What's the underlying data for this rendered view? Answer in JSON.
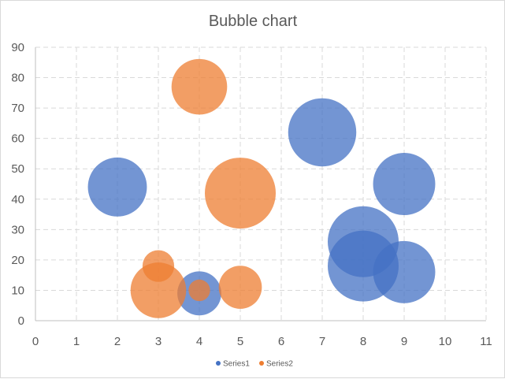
{
  "chart_data": {
    "type": "bubble",
    "title": "Bubble chart",
    "xlabel": "",
    "ylabel": "",
    "xlim": [
      0,
      11
    ],
    "ylim": [
      0,
      90
    ],
    "x_ticks": [
      0,
      1,
      2,
      3,
      4,
      5,
      6,
      7,
      8,
      9,
      10,
      11
    ],
    "y_ticks": [
      0,
      10,
      20,
      30,
      40,
      50,
      60,
      70,
      80,
      90
    ],
    "grid": true,
    "legend_position": "bottom",
    "series": [
      {
        "name": "Series1",
        "color": "#4472c4",
        "points": [
          {
            "x": 2,
            "y": 44,
            "size": 9
          },
          {
            "x": 4,
            "y": 9,
            "size": 5
          },
          {
            "x": 7,
            "y": 62,
            "size": 12
          },
          {
            "x": 8,
            "y": 26,
            "size": 13
          },
          {
            "x": 8,
            "y": 18,
            "size": 13
          },
          {
            "x": 9,
            "y": 45,
            "size": 10
          },
          {
            "x": 9,
            "y": 16,
            "size": 10
          }
        ]
      },
      {
        "name": "Series2",
        "color": "#ed7d31",
        "points": [
          {
            "x": 4,
            "y": 77,
            "size": 8
          },
          {
            "x": 5,
            "y": 42,
            "size": 13
          },
          {
            "x": 3,
            "y": 18,
            "size": 2.6
          },
          {
            "x": 3,
            "y": 10,
            "size": 8
          },
          {
            "x": 4,
            "y": 10,
            "size": 1.2
          },
          {
            "x": 5,
            "y": 11,
            "size": 4.8
          }
        ]
      }
    ]
  }
}
